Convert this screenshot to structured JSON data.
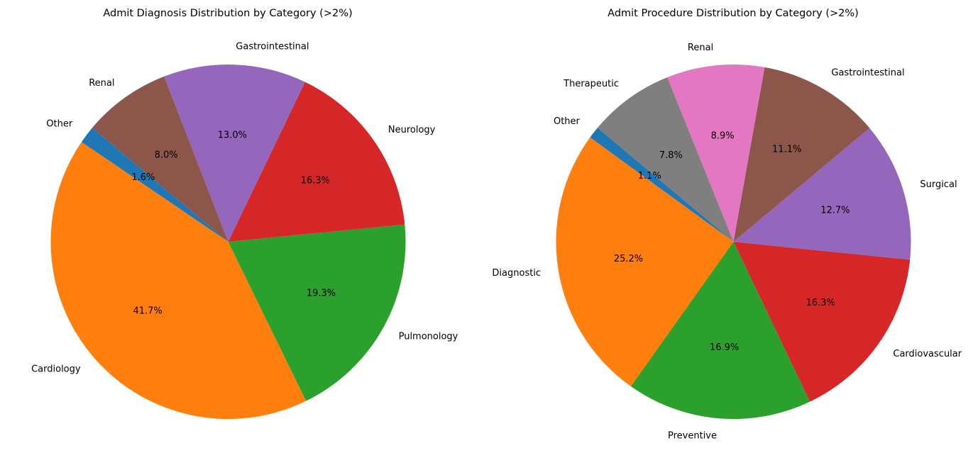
{
  "chart_data": [
    {
      "type": "pie",
      "title": "Admit Diagnosis Distribution by Category (>2%)",
      "start_angle_deg": 140,
      "direction": "counterclockwise",
      "slices": [
        {
          "label": "Other",
          "value": 1.6,
          "pct_label": "1.6%",
          "color": "#1f77b4"
        },
        {
          "label": "Cardiology",
          "value": 41.7,
          "pct_label": "41.7%",
          "color": "#ff7f0e"
        },
        {
          "label": "Pulmonology",
          "value": 19.3,
          "pct_label": "19.3%",
          "color": "#2ca02c"
        },
        {
          "label": "Neurology",
          "value": 16.3,
          "pct_label": "16.3%",
          "color": "#d62728"
        },
        {
          "label": "Gastrointestinal",
          "value": 13.0,
          "pct_label": "13.0%",
          "color": "#9467bd"
        },
        {
          "label": "Renal",
          "value": 8.0,
          "pct_label": "8.0%",
          "color": "#8c564b"
        }
      ]
    },
    {
      "type": "pie",
      "title": "Admit Procedure Distribution by Category (>2%)",
      "start_angle_deg": 140,
      "direction": "counterclockwise",
      "slices": [
        {
          "label": "Other",
          "value": 1.1,
          "pct_label": "1.1%",
          "color": "#1f77b4"
        },
        {
          "label": "Diagnostic",
          "value": 25.2,
          "pct_label": "25.2%",
          "color": "#ff7f0e"
        },
        {
          "label": "Preventive",
          "value": 16.9,
          "pct_label": "16.9%",
          "color": "#2ca02c"
        },
        {
          "label": "Cardiovascular",
          "value": 16.3,
          "pct_label": "16.3%",
          "color": "#d62728"
        },
        {
          "label": "Surgical",
          "value": 12.7,
          "pct_label": "12.7%",
          "color": "#9467bd"
        },
        {
          "label": "Gastrointestinal",
          "value": 11.1,
          "pct_label": "11.1%",
          "color": "#8c564b"
        },
        {
          "label": "Renal",
          "value": 8.9,
          "pct_label": "8.9%",
          "color": "#e377c2"
        },
        {
          "label": "Therapeutic",
          "value": 7.8,
          "pct_label": "7.8%",
          "color": "#7f7f7f"
        }
      ]
    }
  ]
}
